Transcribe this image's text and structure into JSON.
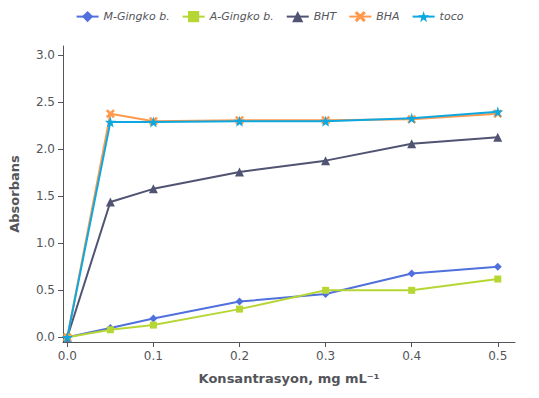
{
  "chart_data": {
    "type": "line",
    "xlabel": "Konsantrasyon, mg mL⁻¹",
    "ylabel": "Absorbans",
    "x": [
      0,
      0.05,
      0.1,
      0.2,
      0.3,
      0.4,
      0.5
    ],
    "series": [
      {
        "name": "M-Gingko b.",
        "marker": "diamond",
        "line_style": "solid",
        "values": [
          0,
          0.1,
          0.2,
          0.38,
          0.46,
          0.68,
          0.75
        ]
      },
      {
        "name": "A-Gingko b.",
        "marker": "square",
        "line_style": "solid",
        "values": [
          0,
          0.08,
          0.13,
          0.3,
          0.5,
          0.5,
          0.62
        ]
      },
      {
        "name": "BHT",
        "marker": "triangle",
        "line_style": "solid",
        "values": [
          0,
          1.44,
          1.58,
          1.76,
          1.88,
          2.06,
          2.13
        ]
      },
      {
        "name": "BHA",
        "marker": "x",
        "line_style": "solid",
        "values": [
          0,
          2.38,
          2.3,
          2.31,
          2.31,
          2.32,
          2.38
        ]
      },
      {
        "name": "toco",
        "marker": "star",
        "line_style": "solid",
        "values": [
          0,
          2.29,
          2.29,
          2.3,
          2.3,
          2.33,
          2.4
        ]
      }
    ],
    "xlim": [
      -0.005,
      0.52
    ],
    "xticks": [
      {
        "value": 0,
        "label": "0.0"
      },
      0.1,
      0.2,
      0.3,
      0.4,
      0.5
    ],
    "ylim": [
      -0.05,
      3.1
    ],
    "yticks": [
      {
        "value": 0,
        "label": "0.0"
      },
      0.5,
      {
        "value": 1,
        "label": "1.0"
      },
      1.5,
      {
        "value": 2,
        "label": "2.0"
      },
      2.5,
      {
        "value": 3,
        "label": "3.0"
      }
    ],
    "grid": false,
    "legend": "top"
  }
}
